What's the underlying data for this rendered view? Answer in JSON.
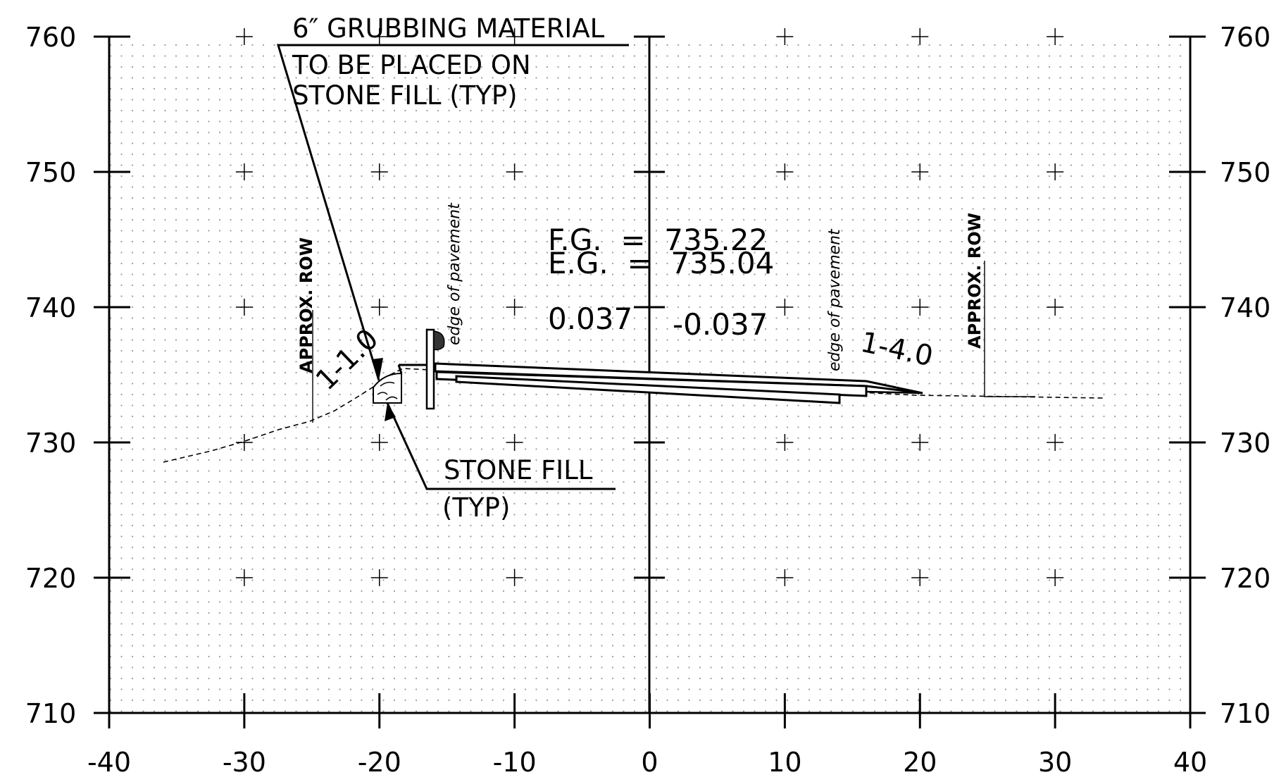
{
  "axes": {
    "x_ticks": [
      "-40",
      "-30",
      "-20",
      "-10",
      "0",
      "10",
      "20",
      "30",
      "40"
    ],
    "y_ticks": [
      "760",
      "750",
      "740",
      "730",
      "720",
      "710"
    ],
    "x_range": [
      -40,
      40
    ],
    "y_range": [
      710,
      760
    ],
    "grid": "dotted with cross markers"
  },
  "labels": {
    "grubbing_line1": "6″ GRUBBING MATERIAL",
    "grubbing_line2": "TO BE PLACED ON",
    "grubbing_line3": "STONE FILL (TYP)",
    "stone_fill_line1": "STONE FILL",
    "stone_fill_line2": "(TYP)",
    "fg": "F.G.  =  735.22",
    "eg": "E.G.  =  735.04",
    "cross_slope_left": "0.037",
    "cross_slope_right": "-0.037",
    "slope_left": "1-1.0",
    "slope_right": "1-4.0",
    "row_left": "APPROX. ROW",
    "row_right": "APPROX. ROW",
    "edge_left": "edge of pavement",
    "edge_right": "edge of pavement"
  },
  "section": {
    "finished_grade_elev": 735.22,
    "existing_grade_elev": 735.04,
    "left_slope": "1-1.0",
    "right_slope": "1-4.0",
    "left_cross_slope": 0.037,
    "right_cross_slope": -0.037,
    "left_row_offset": -25,
    "right_row_offset": 25,
    "left_edge_of_pavement_offset": -14,
    "right_edge_of_pavement_offset": 14
  }
}
